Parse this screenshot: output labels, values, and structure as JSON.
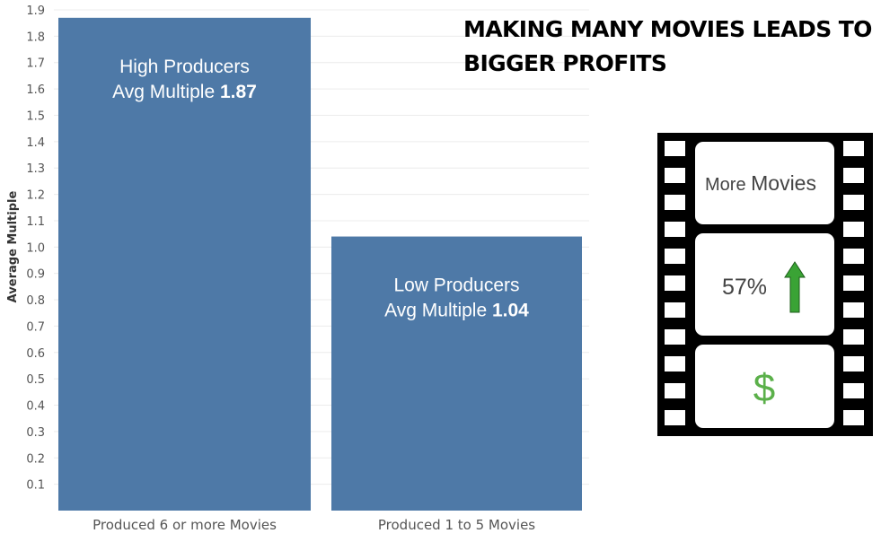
{
  "headline": {
    "line1": "MAKING MANY MOVIES LEADS TO",
    "line2": "BIGGER PROFITS"
  },
  "chart_data": {
    "type": "bar",
    "categories": [
      "Produced 6 or more Movies",
      "Produced 1 to 5 Movies"
    ],
    "values": [
      1.87,
      1.04
    ],
    "ylabel": "Average Multiple",
    "xlabel": "",
    "ylim": [
      0,
      1.9
    ],
    "yticks": [
      "0.1",
      "0.2",
      "0.3",
      "0.4",
      "0.5",
      "0.6",
      "0.7",
      "0.8",
      "0.9",
      "1.0",
      "1.1",
      "1.2",
      "1.3",
      "1.4",
      "1.5",
      "1.6",
      "1.7",
      "1.8",
      "1.9"
    ],
    "grid": true,
    "bar_color": "#4e79a7",
    "bar_labels": [
      {
        "line1": "High Producers",
        "prefix": "Avg Multiple ",
        "value": "1.87"
      },
      {
        "line1": "Low Producers",
        "prefix": "Avg Multiple ",
        "value": "1.04"
      }
    ]
  },
  "filmstrip": {
    "frame1_small": "More ",
    "frame1_large": "Movies",
    "frame2_text": "57%",
    "frame2_icon": "up-arrow-icon",
    "frame3_text": "$",
    "arrow_color": "#3aa335",
    "dollar_color": "#5bb04a"
  }
}
